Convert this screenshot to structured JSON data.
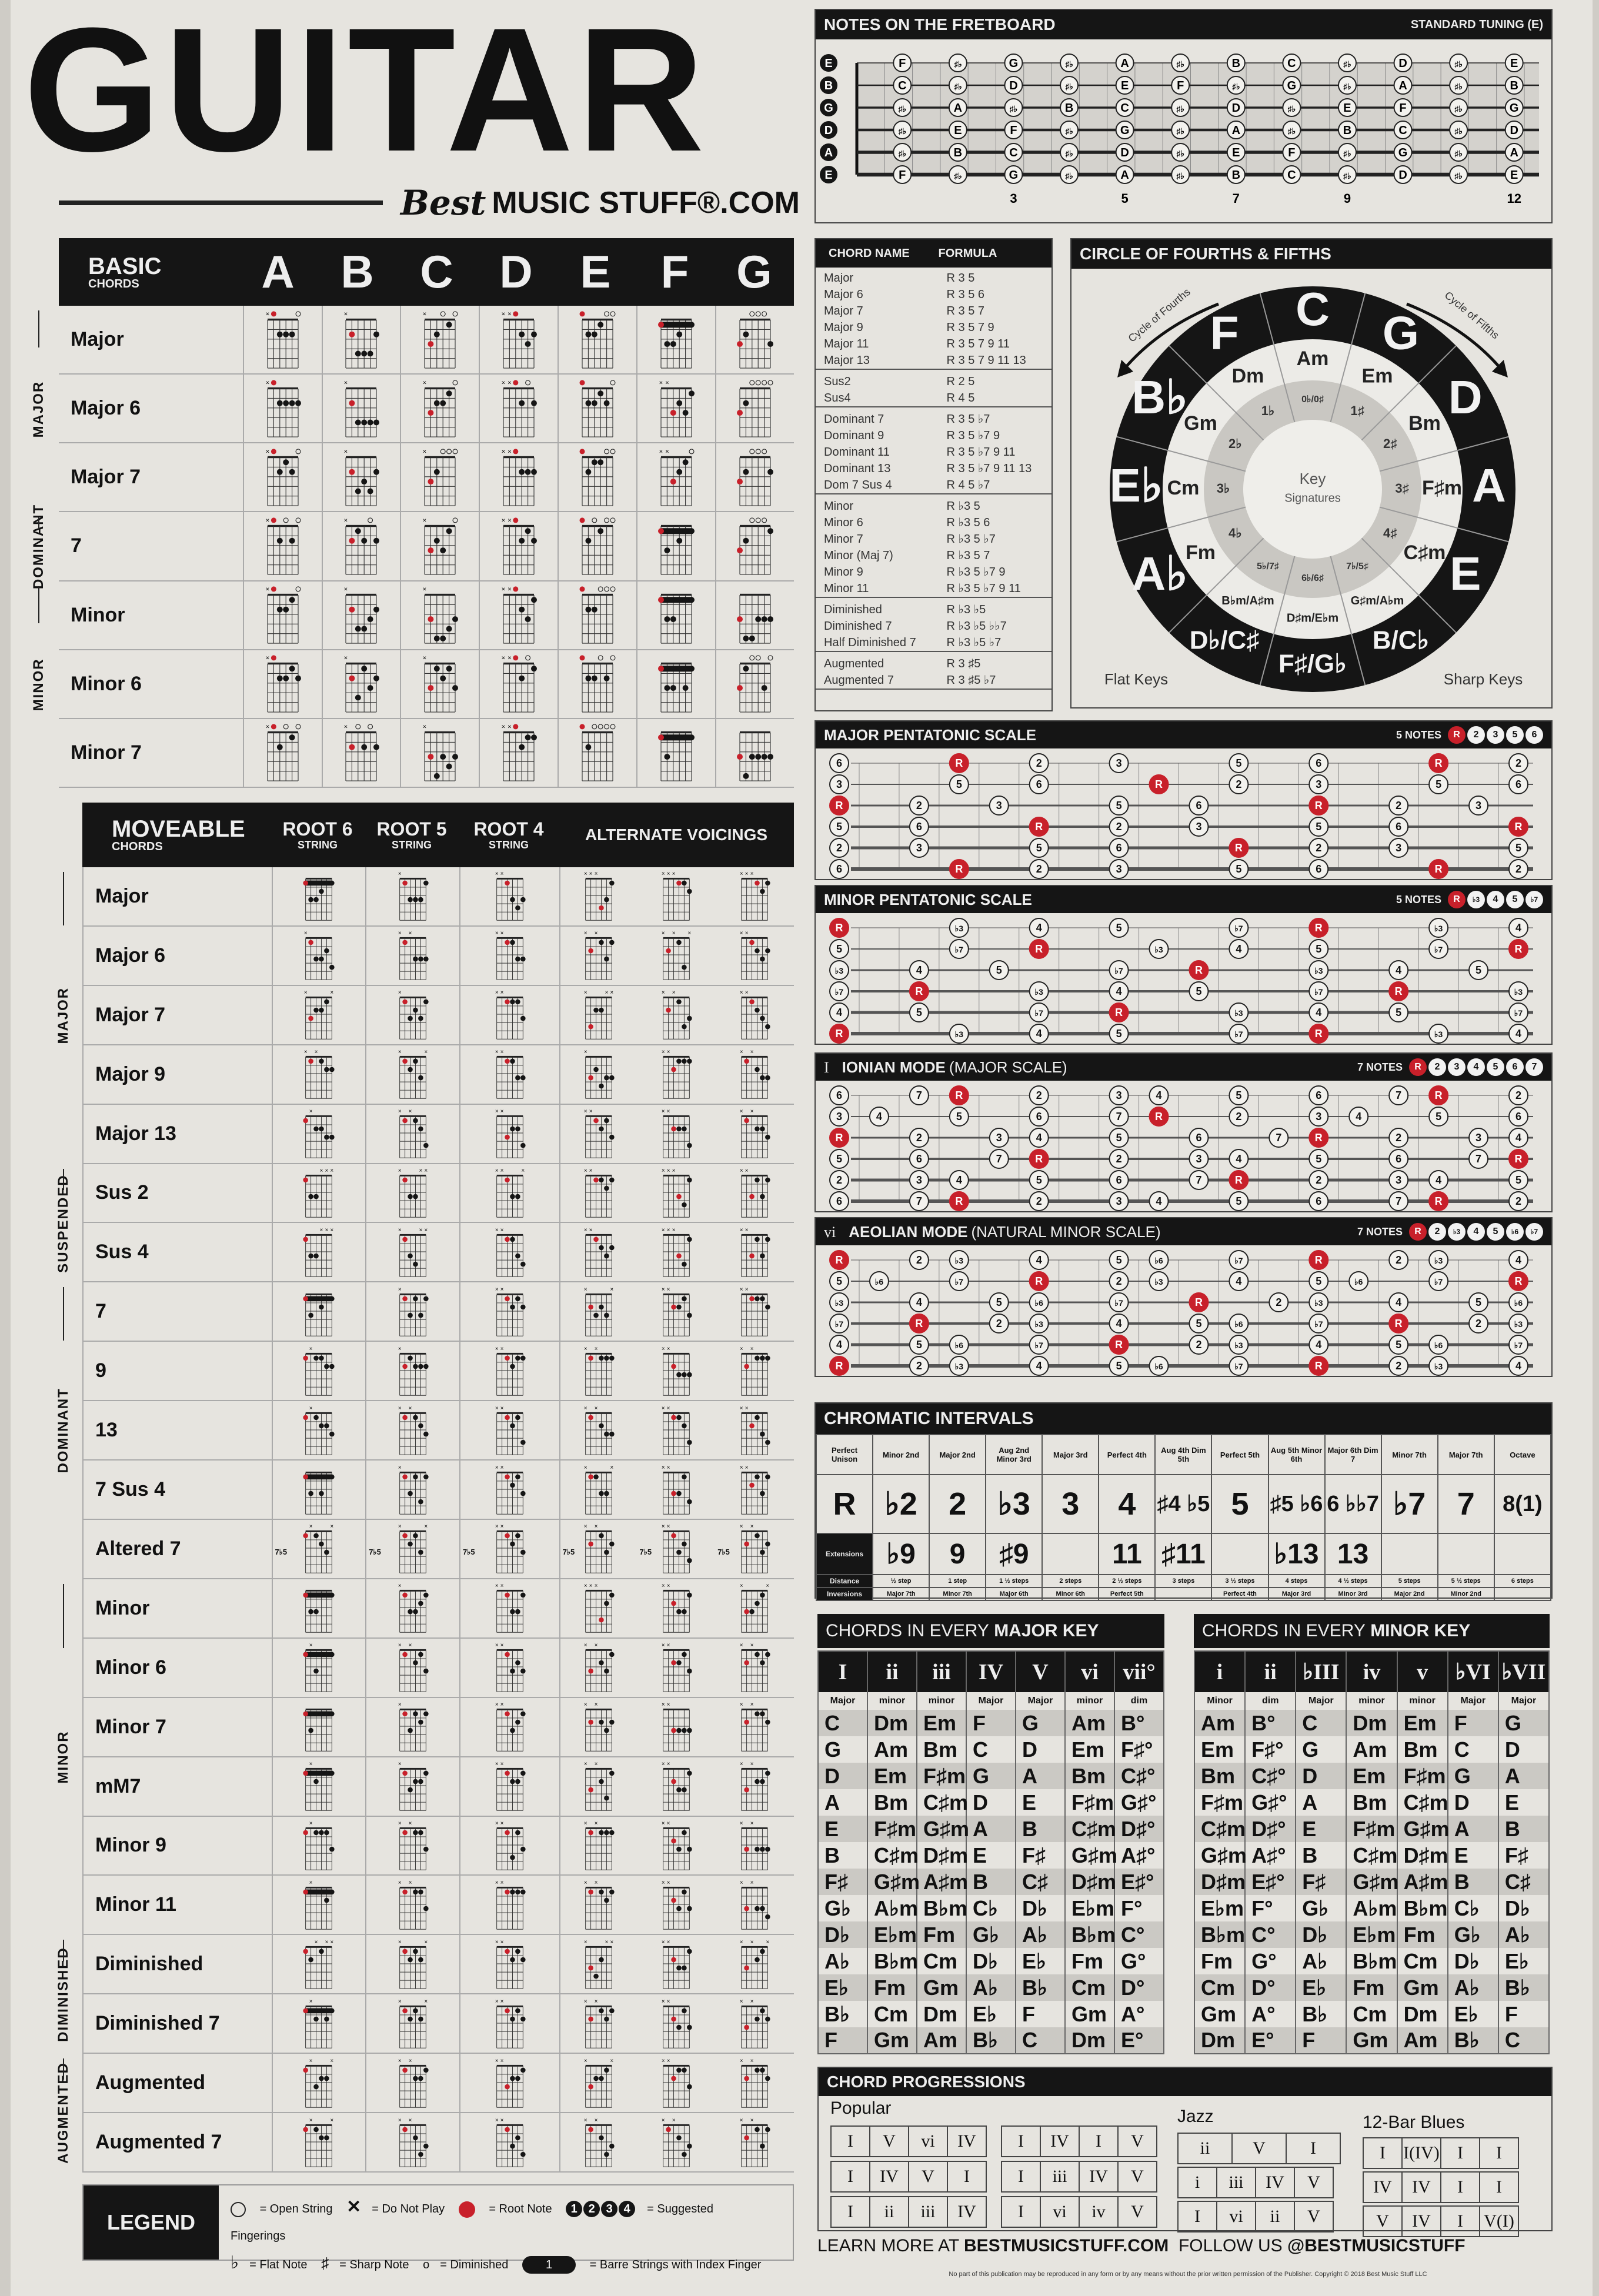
{
  "title": "GUITAR",
  "brand": {
    "best": "Best",
    "rest": "MUSIC STUFF®.COM"
  },
  "basic": {
    "header": {
      "title": "BASIC",
      "subtitle": "CHORDS",
      "keys": [
        "A",
        "B",
        "C",
        "D",
        "E",
        "F",
        "G"
      ]
    },
    "sections": [
      {
        "label": "MAJOR",
        "rows": [
          0,
          2
        ]
      },
      {
        "label": "DOMINANT",
        "rows": [
          3,
          3
        ]
      },
      {
        "label": "MINOR",
        "rows": [
          4,
          6
        ]
      }
    ],
    "rows": [
      {
        "name": "Major",
        "shapes": [
          "x02220",
          "x24442",
          "x32010",
          "xx0232",
          "022100",
          "133211",
          "320003"
        ]
      },
      {
        "name": "Major 6",
        "shapes": [
          "x02222",
          "x24444",
          "x32210",
          "xx0202",
          "022120",
          "xx3231",
          "320000"
        ]
      },
      {
        "name": "Major 7",
        "shapes": [
          "x02120",
          "x24342",
          "x32000",
          "xx0222",
          "021100",
          "xx3210",
          "320002"
        ]
      },
      {
        "name": "7",
        "shapes": [
          "x02020",
          "x21202",
          "x32310",
          "xx0212",
          "020100",
          "131211",
          "320001"
        ]
      },
      {
        "name": "Minor",
        "shapes": [
          "x02210",
          "x24432",
          "x35543",
          "xx0231",
          "022000",
          "133111",
          "355333"
        ]
      },
      {
        "name": "Minor 6",
        "shapes": [
          "x02212",
          "x24132",
          "x31213",
          "xx0201",
          "022020",
          "133131",
          "310030"
        ]
      },
      {
        "name": "Minor 7",
        "shapes": [
          "x02010",
          "x20202",
          "x35343",
          "xx0211",
          "020000",
          "131111",
          "353333"
        ]
      }
    ]
  },
  "moveable": {
    "header": {
      "title": "MOVEABLE",
      "subtitle": "CHORDS",
      "root6": "ROOT 6",
      "root5": "ROOT 5",
      "root4": "ROOT 4",
      "string": "STRING",
      "alternate": "ALTERNATE VOICINGS"
    },
    "sections": [
      {
        "label": "MAJOR",
        "rows": [
          0,
          4
        ]
      },
      {
        "label": "SUSPENDED",
        "rows": [
          5,
          6
        ]
      },
      {
        "label": "DOMINANT",
        "rows": [
          7,
          11
        ]
      },
      {
        "label": "MINOR",
        "rows": [
          12,
          17
        ]
      },
      {
        "label": "DIMINISHED",
        "rows": [
          18,
          19
        ]
      },
      {
        "label": "AUGMENTED",
        "rows": [
          20,
          21
        ]
      }
    ],
    "rows": [
      {
        "name": "Major",
        "shapes": [
          "133211",
          "x13331",
          "xx1343",
          "xxx431",
          "xxx112",
          "xxx121"
        ]
      },
      {
        "name": "Major 6",
        "shapes": [
          "x13324",
          "x1x333",
          "xx1133",
          "x2x131",
          "x2x14x",
          "xx1232"
        ]
      },
      {
        "name": "Major 7",
        "shapes": [
          "x3221x",
          "x13231",
          "xx1113",
          "x422xx",
          "x2x143",
          "xx1234"
        ]
      },
      {
        "name": "Major 9",
        "shapes": [
          "x1x122",
          "x1213x",
          "xx1133",
          "x32433",
          "xx2111",
          "x1x233"
        ]
      },
      {
        "name": "Major 13",
        "shapes": [
          "1x2233",
          "x1x124",
          "xx3224",
          "xx1213",
          "xx2224",
          "x1x223"
        ]
      },
      {
        "name": "Sus 2",
        "shapes": [
          "133xxx",
          "x133xx",
          "xx133x",
          "xx1121",
          "xxx341",
          "xx3131"
        ]
      },
      {
        "name": "Sus 4",
        "shapes": [
          "133xxx",
          "x134xx",
          "xx1134",
          "xx1232",
          "xxx341",
          "xx3131"
        ]
      },
      {
        "name": "7",
        "shapes": [
          "131211",
          "x13131",
          "xx1212",
          "x2323x",
          "xx2213",
          "xx1112"
        ]
      },
      {
        "name": "9",
        "shapes": [
          "1x1122",
          "x21222",
          "xx1211",
          "x1x111",
          "xx2333",
          "x2x111"
        ]
      },
      {
        "name": "13",
        "shapes": [
          "1x1223",
          "x1x123",
          "xx1214",
          "x1x233",
          "xx1124",
          "xx2134"
        ]
      },
      {
        "name": "7 Sus 4",
        "shapes": [
          "131311",
          "x13141",
          "xx1213",
          "x1133x",
          "xx3314",
          "xx2131"
        ]
      },
      {
        "name": "Altered 7",
        "shapes": [
          "1x123x",
          "x1213x",
          "xx1213",
          "x2x132",
          "xx1324",
          "x2x132"
        ],
        "note": "7♭5"
      },
      {
        "name": "Minor",
        "shapes": [
          "133111",
          "x13321",
          "xx1331",
          "xxx421",
          "xx2331",
          "x3321x"
        ]
      },
      {
        "name": "Minor 6",
        "shapes": [
          "1x3111",
          "x1x213",
          "xx1323",
          "x3x231",
          "xx2213",
          "x2x121"
        ]
      },
      {
        "name": "Minor 7",
        "shapes": [
          "131111",
          "x13121",
          "xx1321",
          "x2x232",
          "xx3333",
          "x2x112"
        ]
      },
      {
        "name": "mM7",
        "shapes": [
          "1x2111",
          "x13221",
          "xx1221",
          "x3x241",
          "xx2331",
          "x3x221"
        ]
      },
      {
        "name": "Minor 9",
        "shapes": [
          "1x1113",
          "x1x113",
          "xx1413",
          "x1x111",
          "xx2313",
          "x3x333"
        ]
      },
      {
        "name": "Minor 11",
        "shapes": [
          "1x1121",
          "x1x113",
          "xx1111",
          "x1x121",
          "xx2313",
          "x3x334"
        ]
      },
      {
        "name": "Diminished",
        "shapes": [
          "12x1xx",
          "x1212x",
          "xx1212",
          "x342xx",
          "xx2331",
          "x3x21x"
        ]
      },
      {
        "name": "Diminished 7",
        "shapes": [
          "1x2121",
          "x1212x",
          "xx1212",
          "x2x121",
          "xx2313",
          "x3x212"
        ]
      },
      {
        "name": "Augmented",
        "shapes": [
          "1x322x",
          "x1x221",
          "xx3221",
          "x3221x",
          "xx2113",
          "x2x112"
        ]
      },
      {
        "name": "Augmented 7",
        "shapes": [
          "1x122x",
          "x1x243",
          "xx1324",
          "x1x243",
          "x1x243",
          "x2x131"
        ]
      }
    ]
  },
  "legend": {
    "title": "LEGEND",
    "items": [
      "= Open String",
      "= Do Not Play",
      "= Root Note",
      "= Suggested Fingerings",
      "= Flat Note",
      "= Sharp Note",
      "= Diminished",
      "= Barre Strings with Index Finger"
    ],
    "fingers": [
      "1",
      "2",
      "3",
      "4"
    ],
    "barre": "1"
  },
  "fretboard": {
    "title": "NOTES ON THE FRETBOARD",
    "tuning_label": "STANDARD TUNING (E)",
    "strings": [
      "E",
      "B",
      "G",
      "D",
      "A",
      "E"
    ],
    "accidental": "♯♭",
    "markers": [
      "3",
      "5",
      "7",
      "9",
      "12"
    ]
  },
  "formulas": {
    "headers": [
      "CHORD NAME",
      "FORMULA"
    ],
    "groups": [
      [
        [
          "Major",
          "R 3 5"
        ],
        [
          "Major 6",
          "R 3 5 6"
        ],
        [
          "Major 7",
          "R 3 5 7"
        ],
        [
          "Major 9",
          "R 3 5 7 9"
        ],
        [
          "Major 11",
          "R 3 5 7 9 11"
        ],
        [
          "Major 13",
          "R 3 5 7 9 11 13"
        ]
      ],
      [
        [
          "Sus2",
          "R 2 5"
        ],
        [
          "Sus4",
          "R 4 5"
        ]
      ],
      [
        [
          "Dominant 7",
          "R 3 5 ♭7"
        ],
        [
          "Dominant 9",
          "R 3 5 ♭7 9"
        ],
        [
          "Dominant 11",
          "R 3 5 ♭7 9 11"
        ],
        [
          "Dominant 13",
          "R 3 5 ♭7 9 11 13"
        ],
        [
          "Dom 7 Sus 4",
          "R 4 5 ♭7"
        ]
      ],
      [
        [
          "Minor",
          "R ♭3 5"
        ],
        [
          "Minor 6",
          "R ♭3 5 6"
        ],
        [
          "Minor 7",
          "R ♭3 5 ♭7"
        ],
        [
          "Minor (Maj 7)",
          "R ♭3 5 7"
        ],
        [
          "Minor 9",
          "R ♭3 5 ♭7 9"
        ],
        [
          "Minor 11",
          "R ♭3 5 ♭7 9 11"
        ]
      ],
      [
        [
          "Diminished",
          "R ♭3 ♭5"
        ],
        [
          "Diminished 7",
          "R ♭3 ♭5 ♭♭7"
        ],
        [
          "Half Diminished 7",
          "R ♭3 ♭5 ♭7"
        ]
      ],
      [
        [
          "Augmented",
          "R 3 ♯5"
        ],
        [
          "Augmented 7",
          "R 3 ♯5 ♭7"
        ]
      ]
    ]
  },
  "circle": {
    "title": "CIRCLE OF FOURTHS & FIFTHS",
    "fourths": "Cycle of Fourths",
    "fifths": "Cycle of Fifths",
    "center": [
      "Key",
      "Signatures"
    ],
    "flat_keys": "Flat Keys",
    "sharp_keys": "Sharp Keys",
    "majors": [
      "C",
      "G",
      "D",
      "A",
      "E",
      "B/C♭",
      "F♯/G♭",
      "D♭/C♯",
      "A♭",
      "E♭",
      "B♭",
      "F"
    ],
    "minors": [
      "Am",
      "Em",
      "Bm",
      "F♯m",
      "C♯m",
      "G♯m/A♭m",
      "D♯m/E♭m",
      "B♭m/A♯m",
      "Fm",
      "Cm",
      "Gm",
      "Dm"
    ],
    "signatures": [
      "0♭/0♯",
      "1♯",
      "2♯",
      "3♯",
      "4♯",
      "7♭/5♯",
      "6♭/6♯",
      "5♭/7♯",
      "4♭",
      "3♭",
      "2♭",
      "1♭"
    ]
  },
  "scales": [
    {
      "prefix": "",
      "title": "MAJOR PENTATONIC SCALE",
      "subtitle": "",
      "count": "5 NOTES",
      "root_fret": 3,
      "degrees": [
        [
          "R",
          0
        ],
        [
          "2",
          2
        ],
        [
          "3",
          4
        ],
        [
          "5",
          7
        ],
        [
          "6",
          9
        ]
      ]
    },
    {
      "prefix": "",
      "title": "MINOR PENTATONIC SCALE",
      "subtitle": "",
      "count": "5 NOTES",
      "root_fret": 0,
      "degrees": [
        [
          "R",
          0
        ],
        [
          "♭3",
          3
        ],
        [
          "4",
          5
        ],
        [
          "5",
          7
        ],
        [
          "♭7",
          10
        ]
      ]
    },
    {
      "prefix": "I",
      "title": "IONIAN MODE",
      "subtitle": "(MAJOR SCALE)",
      "count": "7 NOTES",
      "root_fret": 3,
      "degrees": [
        [
          "R",
          0
        ],
        [
          "2",
          2
        ],
        [
          "3",
          4
        ],
        [
          "4",
          5
        ],
        [
          "5",
          7
        ],
        [
          "6",
          9
        ],
        [
          "7",
          11
        ]
      ]
    },
    {
      "prefix": "vi",
      "title": "AEOLIAN MODE",
      "subtitle": "(NATURAL MINOR SCALE)",
      "count": "7 NOTES",
      "root_fret": 0,
      "degrees": [
        [
          "R",
          0
        ],
        [
          "2",
          2
        ],
        [
          "♭3",
          3
        ],
        [
          "4",
          5
        ],
        [
          "5",
          7
        ],
        [
          "♭6",
          8
        ],
        [
          "♭7",
          10
        ]
      ]
    }
  ],
  "intervals": {
    "title": "CHROMATIC INTERVALS",
    "names": [
      "Perfect Unison",
      "Minor 2nd",
      "Major 2nd",
      "Aug 2nd Minor 3rd",
      "Major 3rd",
      "Perfect 4th",
      "Aug 4th Dim 5th",
      "Perfect 5th",
      "Aug 5th Minor 6th",
      "Major 6th Dim 7",
      "Minor 7th",
      "Major 7th",
      "Octave"
    ],
    "symbols": [
      "R",
      "♭2",
      "2",
      "♭3",
      "3",
      "4",
      "♯4 ♭5",
      "5",
      "♯5 ♭6",
      "6 ♭♭7",
      "♭7",
      "7",
      "8(1)"
    ],
    "extensions_label": "Extensions",
    "extensions": [
      "",
      "♭9",
      "9",
      "♯9",
      "",
      "11",
      "♯11",
      "",
      "♭13",
      "13",
      "",
      "",
      ""
    ],
    "distance_label": "Distance",
    "distance": [
      "½ step",
      "1 step",
      "1 ½ steps",
      "2 steps",
      "2 ½ steps",
      "3 steps",
      "3 ½ steps",
      "4 steps",
      "4 ½ steps",
      "5 steps",
      "5 ½ steps",
      "6 steps"
    ],
    "inversions_label": "Inversions",
    "inversions": [
      "Major 7th",
      "Minor 7th",
      "Major 6th",
      "Minor 6th",
      "Perfect 5th",
      "",
      "Perfect 4th",
      "Major 3rd",
      "Minor 3rd",
      "Major 2nd",
      "Minor 2nd",
      ""
    ]
  },
  "major_keys": {
    "title_a": "CHORDS IN EVERY ",
    "title_b": "MAJOR KEY",
    "numerals": [
      "I",
      "ii",
      "iii",
      "IV",
      "V",
      "vi",
      "vii°"
    ],
    "qualities": [
      "Major",
      "minor",
      "minor",
      "Major",
      "Major",
      "minor",
      "dim"
    ],
    "rows": [
      [
        "C",
        "Dm",
        "Em",
        "F",
        "G",
        "Am",
        "B°"
      ],
      [
        "G",
        "Am",
        "Bm",
        "C",
        "D",
        "Em",
        "F♯°"
      ],
      [
        "D",
        "Em",
        "F♯m",
        "G",
        "A",
        "Bm",
        "C♯°"
      ],
      [
        "A",
        "Bm",
        "C♯m",
        "D",
        "E",
        "F♯m",
        "G♯°"
      ],
      [
        "E",
        "F♯m",
        "G♯m",
        "A",
        "B",
        "C♯m",
        "D♯°"
      ],
      [
        "B",
        "C♯m",
        "D♯m",
        "E",
        "F♯",
        "G♯m",
        "A♯°"
      ],
      [
        "F♯",
        "G♯m",
        "A♯m",
        "B",
        "C♯",
        "D♯m",
        "E♯°"
      ],
      [
        "G♭",
        "A♭m",
        "B♭m",
        "C♭",
        "D♭",
        "E♭m",
        "F°"
      ],
      [
        "D♭",
        "E♭m",
        "Fm",
        "G♭",
        "A♭",
        "B♭m",
        "C°"
      ],
      [
        "A♭",
        "B♭m",
        "Cm",
        "D♭",
        "E♭",
        "Fm",
        "G°"
      ],
      [
        "E♭",
        "Fm",
        "Gm",
        "A♭",
        "B♭",
        "Cm",
        "D°"
      ],
      [
        "B♭",
        "Cm",
        "Dm",
        "E♭",
        "F",
        "Gm",
        "A°"
      ],
      [
        "F",
        "Gm",
        "Am",
        "B♭",
        "C",
        "Dm",
        "E°"
      ]
    ]
  },
  "minor_keys": {
    "title_a": "CHORDS IN EVERY ",
    "title_b": "MINOR KEY",
    "numerals": [
      "i",
      "ii",
      "♭III",
      "iv",
      "v",
      "♭VI",
      "♭VII"
    ],
    "qualities": [
      "Minor",
      "dim",
      "Major",
      "minor",
      "minor",
      "Major",
      "Major"
    ],
    "rows": [
      [
        "Am",
        "B°",
        "C",
        "Dm",
        "Em",
        "F",
        "G"
      ],
      [
        "Em",
        "F♯°",
        "G",
        "Am",
        "Bm",
        "C",
        "D"
      ],
      [
        "Bm",
        "C♯°",
        "D",
        "Em",
        "F♯m",
        "G",
        "A"
      ],
      [
        "F♯m",
        "G♯°",
        "A",
        "Bm",
        "C♯m",
        "D",
        "E"
      ],
      [
        "C♯m",
        "D♯°",
        "E",
        "F♯m",
        "G♯m",
        "A",
        "B"
      ],
      [
        "G♯m",
        "A♯°",
        "B",
        "C♯m",
        "D♯m",
        "E",
        "F♯"
      ],
      [
        "D♯m",
        "E♯°",
        "F♯",
        "G♯m",
        "A♯m",
        "B",
        "C♯"
      ],
      [
        "E♭m",
        "F°",
        "G♭",
        "A♭m",
        "B♭m",
        "C♭",
        "D♭"
      ],
      [
        "B♭m",
        "C°",
        "D♭",
        "E♭m",
        "Fm",
        "G♭",
        "A♭"
      ],
      [
        "Fm",
        "G°",
        "A♭",
        "B♭m",
        "Cm",
        "D♭",
        "E♭"
      ],
      [
        "Cm",
        "D°",
        "E♭",
        "Fm",
        "Gm",
        "A♭",
        "B♭"
      ],
      [
        "Gm",
        "A°",
        "B♭",
        "Cm",
        "Dm",
        "E♭",
        "F"
      ],
      [
        "Dm",
        "E°",
        "F",
        "Gm",
        "Am",
        "B♭",
        "C"
      ]
    ]
  },
  "progressions": {
    "title": "CHORD PROGRESSIONS",
    "popular_label": "Popular",
    "jazz_label": "Jazz",
    "blues_label": "12-Bar Blues",
    "popular_a": [
      [
        "I",
        "V",
        "vi",
        "IV"
      ],
      [
        "I",
        "IV",
        "V",
        "I"
      ],
      [
        "I",
        "ii",
        "iii",
        "IV"
      ]
    ],
    "popular_b": [
      [
        "I",
        "IV",
        "I",
        "V"
      ],
      [
        "I",
        "iii",
        "IV",
        "V"
      ],
      [
        "I",
        "vi",
        "iv",
        "V"
      ]
    ],
    "jazz": [
      [
        "ii",
        "V",
        "I"
      ],
      [
        "i",
        "iii",
        "IV",
        "V"
      ],
      [
        "I",
        "vi",
        "ii",
        "V"
      ]
    ],
    "blues": [
      [
        "I",
        "I(IV)",
        "I",
        "I"
      ],
      [
        "IV",
        "IV",
        "I",
        "I"
      ],
      [
        "V",
        "IV",
        "I",
        "V(I)"
      ]
    ]
  },
  "footer": {
    "learn": "LEARN MORE AT ",
    "site": "BESTMUSICSTUFF.COM",
    "follow": "FOLLOW US ",
    "handle": "@BESTMUSICSTUFF",
    "copyright": "No part of this publication may be reproduced in any form or by any means without the prior written permission of the Publisher. Copyright © 2018 Best Music Stuff LLC"
  },
  "colors": {
    "root": "#c8202a",
    "ink": "#151515",
    "paper": "#e6e4df",
    "shade": "#cbc9c4"
  }
}
